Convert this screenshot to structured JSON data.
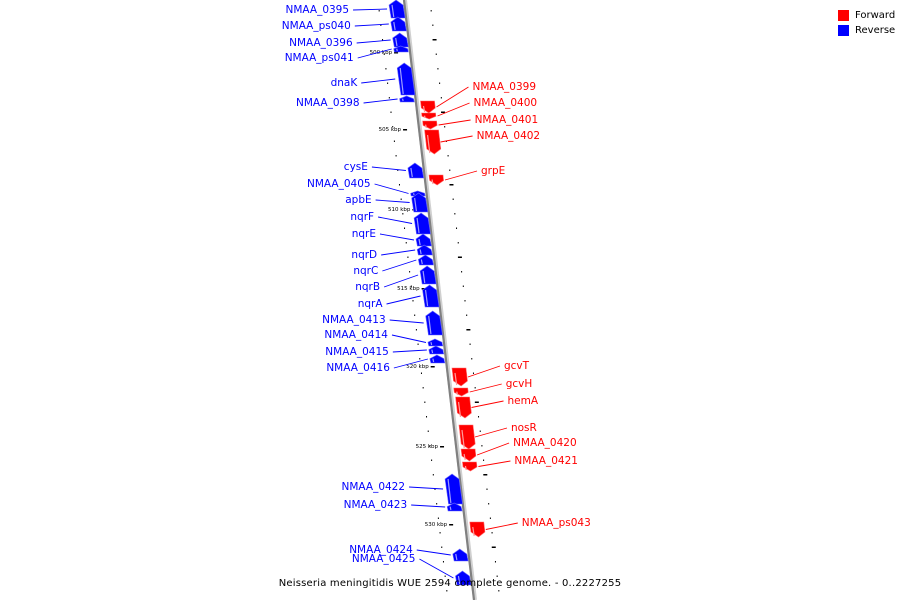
{
  "legend": {
    "forward_label": "Forward",
    "reverse_label": "Reverse",
    "forward_color": "#ff0000",
    "reverse_color": "#0000ff"
  },
  "caption": "Neisseria meningitidis WUE 2594 complete genome. - 0..2227255",
  "ruler": [
    "500 kbp",
    "505 kbp",
    "510 kbp",
    "515 kbp",
    "520 kbp",
    "525 kbp",
    "530 kbp"
  ],
  "genes": [
    {
      "label": "NMAA_0395",
      "strand": "reverse"
    },
    {
      "label": "NMAA_ps040",
      "strand": "reverse"
    },
    {
      "label": "NMAA_0396",
      "strand": "reverse"
    },
    {
      "label": "NMAA_ps041",
      "strand": "reverse"
    },
    {
      "label": "dnaK",
      "strand": "reverse"
    },
    {
      "label": "NMAA_0398",
      "strand": "reverse"
    },
    {
      "label": "NMAA_0399",
      "strand": "forward"
    },
    {
      "label": "NMAA_0400",
      "strand": "forward"
    },
    {
      "label": "NMAA_0401",
      "strand": "forward"
    },
    {
      "label": "NMAA_0402",
      "strand": "forward"
    },
    {
      "label": "grpE",
      "strand": "forward"
    },
    {
      "label": "cysE",
      "strand": "reverse"
    },
    {
      "label": "NMAA_0405",
      "strand": "reverse"
    },
    {
      "label": "apbE",
      "strand": "reverse"
    },
    {
      "label": "nqrF",
      "strand": "reverse"
    },
    {
      "label": "nqrE",
      "strand": "reverse"
    },
    {
      "label": "nqrD",
      "strand": "reverse"
    },
    {
      "label": "nqrC",
      "strand": "reverse"
    },
    {
      "label": "nqrB",
      "strand": "reverse"
    },
    {
      "label": "nqrA",
      "strand": "reverse"
    },
    {
      "label": "NMAA_0413",
      "strand": "reverse"
    },
    {
      "label": "NMAA_0414",
      "strand": "reverse"
    },
    {
      "label": "NMAA_0415",
      "strand": "reverse"
    },
    {
      "label": "NMAA_0416",
      "strand": "reverse"
    },
    {
      "label": "gcvT",
      "strand": "forward"
    },
    {
      "label": "gcvH",
      "strand": "forward"
    },
    {
      "label": "hemA",
      "strand": "forward"
    },
    {
      "label": "nosR",
      "strand": "forward"
    },
    {
      "label": "NMAA_0420",
      "strand": "forward"
    },
    {
      "label": "NMAA_0421",
      "strand": "forward"
    },
    {
      "label": "NMAA_0422",
      "strand": "reverse"
    },
    {
      "label": "NMAA_0423",
      "strand": "reverse"
    },
    {
      "label": "NMAA_ps043",
      "strand": "forward"
    },
    {
      "label": "NMAA_0424",
      "strand": "reverse"
    },
    {
      "label": "NMAA_0425",
      "strand": "reverse"
    }
  ]
}
